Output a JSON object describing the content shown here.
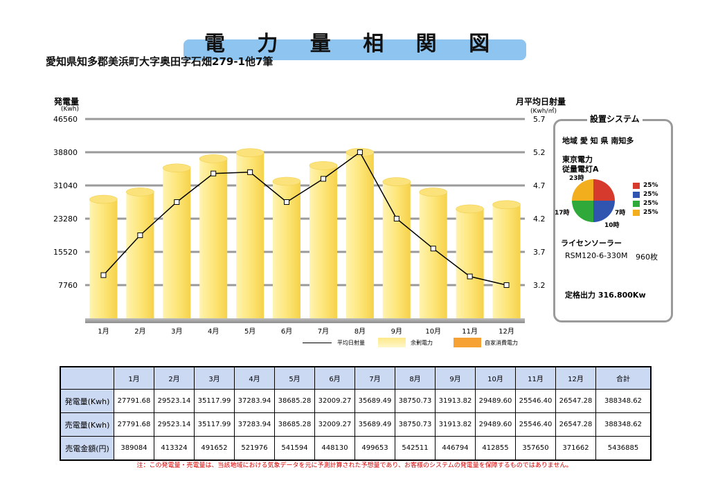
{
  "title": "電 力 量 相 関 図",
  "address": "愛知県知多郡美浜町大字奥田字石畑279-1他7筆",
  "chart_data": {
    "type": "bar",
    "categories": [
      "1月",
      "2月",
      "3月",
      "4月",
      "5月",
      "6月",
      "7月",
      "8月",
      "9月",
      "10月",
      "11月",
      "12月"
    ],
    "series": [
      {
        "name": "余剰電力",
        "type": "bar",
        "values": [
          27791.68,
          29523.14,
          35117.99,
          37283.94,
          38685.28,
          32009.27,
          35689.49,
          38750.73,
          31913.82,
          29489.6,
          25546.4,
          26547.28
        ],
        "color": "#fde98a"
      },
      {
        "name": "平均日射量",
        "type": "line",
        "axis": "right",
        "values": [
          3.35,
          3.95,
          4.45,
          4.88,
          4.9,
          4.45,
          4.8,
          5.2,
          4.2,
          3.75,
          3.33,
          3.2
        ],
        "color": "#000000"
      }
    ],
    "legend_extra": [
      {
        "name": "自家消費電力",
        "color": "#f5a134"
      }
    ],
    "ylabel_left": "発電量",
    "ylabel_left_unit": "(Kwh)",
    "ylabel_right": "月平均日射量",
    "ylabel_right_unit": "(Kwh/㎡)",
    "ylim_left": [
      0,
      46560
    ],
    "ylim_right": [
      2.7,
      5.7
    ],
    "yticks_left": [
      "46560",
      "38800",
      "31040",
      "23280",
      "15520",
      "7760"
    ],
    "yticks_right": [
      "5.7",
      "5.2",
      "4.7",
      "4.2",
      "3.7",
      "3.2"
    ],
    "grid": true,
    "legend_position": "bottom"
  },
  "system": {
    "title": "設置システム",
    "region": "地域  愛 知 県 南知多",
    "utility_line1": "東京電力",
    "utility_line2": "従量電灯A",
    "pie": {
      "slices": [
        {
          "label": "25%",
          "value": 25,
          "color": "#d63a2c"
        },
        {
          "label": "25%",
          "value": 25,
          "color": "#2f55b0"
        },
        {
          "label": "25%",
          "value": 25,
          "color": "#2faa3a"
        },
        {
          "label": "25%",
          "value": 25,
          "color": "#f2ae1c"
        }
      ],
      "hour_labels": [
        "23時",
        "7時",
        "10時",
        "17時"
      ]
    },
    "license": "ライセンソーラー",
    "module": "RSM120-6-330M",
    "module_count": "960枚",
    "rated_output": "定格出力  316.800Kw"
  },
  "legend": {
    "line_label": "平均日射量",
    "surplus_label": "余剰電力",
    "self_label": "自家消費電力"
  },
  "table": {
    "headers": [
      "1月",
      "2月",
      "3月",
      "4月",
      "5月",
      "6月",
      "7月",
      "8月",
      "9月",
      "10月",
      "11月",
      "12月",
      "合計"
    ],
    "rows": [
      {
        "label": "発電量(Kwh)",
        "values": [
          "27791.68",
          "29523.14",
          "35117.99",
          "37283.94",
          "38685.28",
          "32009.27",
          "35689.49",
          "38750.73",
          "31913.82",
          "29489.60",
          "25546.40",
          "26547.28",
          "388348.62"
        ]
      },
      {
        "label": "売電量(Kwh)",
        "values": [
          "27791.68",
          "29523.14",
          "35117.99",
          "37283.94",
          "38685.28",
          "32009.27",
          "35689.49",
          "38750.73",
          "31913.82",
          "29489.60",
          "25546.40",
          "26547.28",
          "388348.62"
        ]
      },
      {
        "label": "売電金額(円)",
        "values": [
          "389084",
          "413324",
          "491652",
          "521976",
          "541594",
          "448130",
          "499653",
          "542511",
          "446794",
          "412855",
          "357650",
          "371662",
          "5436885"
        ]
      }
    ]
  },
  "note": "注：この発電量・売電量は、当該地域における気象データを元に予測計算された予想量であり、お客様のシステムの発電量を保障するものではありません。"
}
